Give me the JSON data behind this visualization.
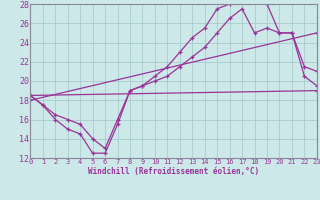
{
  "xlabel": "Windchill (Refroidissement éolien,°C)",
  "bg_color": "#cce8e8",
  "line_color": "#993399",
  "grid_color": "#aacccc",
  "spine_color": "#888899",
  "xlim": [
    0,
    23
  ],
  "ylim": [
    12,
    28
  ],
  "xticks": [
    0,
    1,
    2,
    3,
    4,
    5,
    6,
    7,
    8,
    9,
    10,
    11,
    12,
    13,
    14,
    15,
    16,
    17,
    18,
    19,
    20,
    21,
    22,
    23
  ],
  "yticks": [
    12,
    14,
    16,
    18,
    20,
    22,
    24,
    26,
    28
  ],
  "curve1_x": [
    0,
    1,
    2,
    3,
    4,
    5,
    6,
    7,
    8,
    9,
    10,
    11,
    12,
    13,
    14,
    15,
    16,
    17,
    18,
    19,
    20,
    21,
    22,
    23
  ],
  "curve1_y": [
    18.5,
    17.5,
    16.5,
    16.0,
    15.5,
    14.0,
    13.0,
    16.0,
    19.0,
    19.5,
    20.0,
    20.5,
    21.5,
    22.5,
    23.5,
    25.0,
    26.5,
    27.5,
    25.0,
    25.5,
    25.0,
    25.0,
    20.5,
    19.5
  ],
  "curve2_x": [
    0,
    1,
    2,
    3,
    4,
    5,
    6,
    7,
    8,
    9,
    10,
    11,
    12,
    13,
    14,
    15,
    16,
    17,
    18,
    19,
    20,
    21,
    22,
    23
  ],
  "curve2_y": [
    18.5,
    17.5,
    16.0,
    15.0,
    14.5,
    12.5,
    12.5,
    15.5,
    19.0,
    19.5,
    20.5,
    21.5,
    23.0,
    24.5,
    25.5,
    27.5,
    28.0,
    29.0,
    28.5,
    28.0,
    25.0,
    25.0,
    21.5,
    21.0
  ],
  "curve3_x": [
    0,
    23
  ],
  "curve3_y": [
    18.5,
    19.0
  ],
  "curve4_x": [
    0,
    23
  ],
  "curve4_y": [
    18.0,
    25.0
  ]
}
